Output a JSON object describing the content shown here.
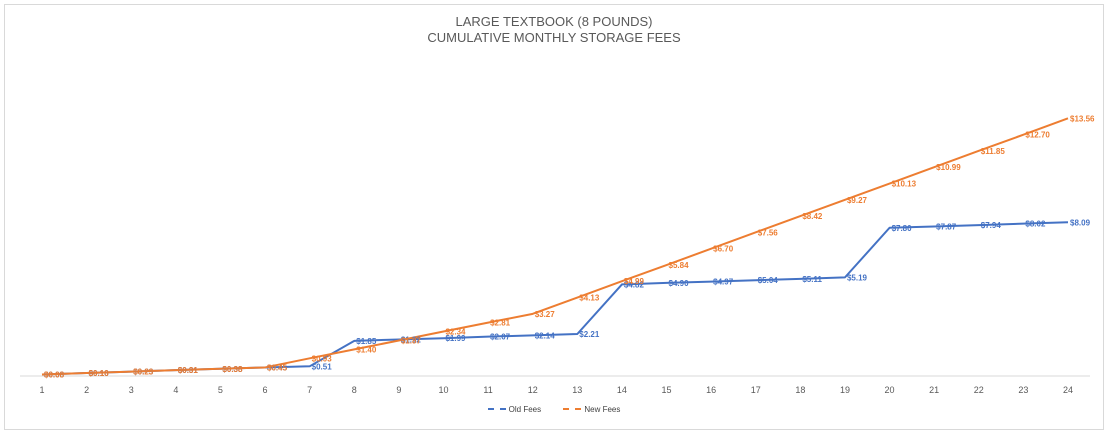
{
  "chart_data": {
    "type": "line",
    "title": "LARGE TEXTBOOK (8 POUNDS)",
    "subtitle": "CUMULATIVE MONTHLY STORAGE FEES",
    "xlabel": "",
    "ylabel": "",
    "categories": [
      "1",
      "2",
      "3",
      "4",
      "5",
      "6",
      "7",
      "8",
      "9",
      "10",
      "11",
      "12",
      "13",
      "14",
      "15",
      "16",
      "17",
      "18",
      "19",
      "20",
      "21",
      "22",
      "23",
      "24"
    ],
    "series": [
      {
        "name": "Old Fees",
        "color": "#4472c4",
        "values": [
          0.08,
          0.16,
          0.23,
          0.31,
          0.38,
          0.45,
          0.51,
          1.85,
          1.92,
          1.99,
          2.07,
          2.14,
          2.21,
          4.82,
          4.9,
          4.97,
          5.04,
          5.11,
          5.19,
          7.8,
          7.87,
          7.94,
          8.02,
          8.09
        ],
        "labels": [
          "$0.08",
          "$0.16",
          "$0.23",
          "$0.31",
          "$0.38",
          "$0.45",
          "$0.51",
          "$1.85",
          "$1.92",
          "$1.99",
          "$2.07",
          "$2.14",
          "$2.21",
          "$4.82",
          "$4.90",
          "$4.97",
          "$5.04",
          "$5.11",
          "$5.19",
          "$7.80",
          "$7.87",
          "$7.94",
          "$8.02",
          "$8.09"
        ]
      },
      {
        "name": "New Fees",
        "color": "#ed7d31",
        "values": [
          0.08,
          0.16,
          0.23,
          0.31,
          0.38,
          0.45,
          0.93,
          1.4,
          1.87,
          2.34,
          2.81,
          3.27,
          4.13,
          4.99,
          5.84,
          6.7,
          7.56,
          8.42,
          9.27,
          10.13,
          10.99,
          11.85,
          12.7,
          13.56
        ],
        "labels": [
          "$0.08",
          "$0.16",
          "$0.23",
          "$0.31",
          "$0.38",
          "$0.45",
          "$0.93",
          "$1.40",
          "$1.87",
          "$2.34",
          "$2.81",
          "$3.27",
          "$4.13",
          "$4.99",
          "$5.84",
          "$6.70",
          "$7.56",
          "$8.42",
          "$9.27",
          "$10.13",
          "$10.99",
          "$11.85",
          "$12.70",
          "$13.56"
        ]
      }
    ],
    "ylim": [
      0,
      13.6
    ],
    "grid": false,
    "legend_position": "bottom",
    "data_labels": true
  },
  "legend": {
    "old": "Old Fees",
    "new": "New Fees"
  }
}
